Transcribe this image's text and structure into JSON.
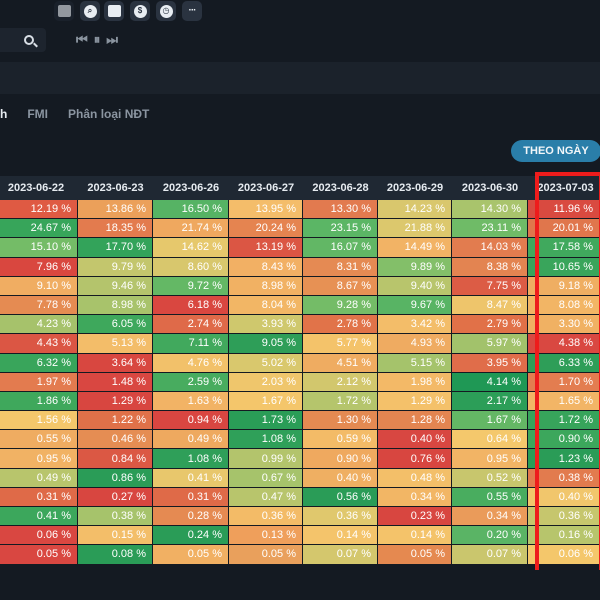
{
  "toolbar": {
    "icons": [
      {
        "name": "layout-icon"
      },
      {
        "name": "zoom-icon"
      },
      {
        "name": "gift-icon"
      },
      {
        "name": "dollar-icon",
        "glyph": "$"
      },
      {
        "name": "clock-icon"
      },
      {
        "name": "more-icon",
        "glyph": "···"
      }
    ],
    "playback": {
      "first": "⏮",
      "pause": "⏸",
      "next": "⏭"
    }
  },
  "tabs": [
    {
      "label": "h",
      "active": true
    },
    {
      "label": "FMI",
      "active": false
    },
    {
      "label": "Phân loại NĐT",
      "active": false
    }
  ],
  "view_button": {
    "label": "THEO NGÀY"
  },
  "table": {
    "columns": [
      "2023-06-22",
      "2023-06-23",
      "2023-06-26",
      "2023-06-27",
      "2023-06-28",
      "2023-06-29",
      "2023-06-30",
      "2023-07-03"
    ],
    "rows": [
      [
        {
          "v": "12.19 %",
          "c": "#df5a43"
        },
        {
          "v": "13.86 %",
          "c": "#eba05a"
        },
        {
          "v": "16.50 %",
          "c": "#56b364"
        },
        {
          "v": "13.95 %",
          "c": "#f4bd6a"
        },
        {
          "v": "13.30 %",
          "c": "#e27a4f"
        },
        {
          "v": "14.23 %",
          "c": "#d9c76d"
        },
        {
          "v": "14.30 %",
          "c": "#a9c46c"
        },
        {
          "v": "11.96 %",
          "c": "#d94a40"
        }
      ],
      [
        {
          "v": "24.67 %",
          "c": "#37a55a"
        },
        {
          "v": "18.35 %",
          "c": "#e37b4e"
        },
        {
          "v": "21.74 %",
          "c": "#efa85f"
        },
        {
          "v": "20.24 %",
          "c": "#e58450"
        },
        {
          "v": "23.15 %",
          "c": "#5bb665"
        },
        {
          "v": "21.88 %",
          "c": "#dcc86d"
        },
        {
          "v": "23.11 %",
          "c": "#6fbb67"
        },
        {
          "v": "20.01 %",
          "c": "#e0764c"
        }
      ],
      [
        {
          "v": "15.10 %",
          "c": "#74bc67"
        },
        {
          "v": "17.70 %",
          "c": "#33a35a"
        },
        {
          "v": "14.62 %",
          "c": "#e6c86c"
        },
        {
          "v": "13.19 %",
          "c": "#db5644"
        },
        {
          "v": "16.07 %",
          "c": "#62b765"
        },
        {
          "v": "14.49 %",
          "c": "#f2b365"
        },
        {
          "v": "14.03 %",
          "c": "#e27c4f"
        },
        {
          "v": "17.58 %",
          "c": "#40a95d"
        }
      ],
      [
        {
          "v": "7.96 %",
          "c": "#d9473f"
        },
        {
          "v": "9.79 %",
          "c": "#c3c66d"
        },
        {
          "v": "8.60 %",
          "c": "#d8c76d"
        },
        {
          "v": "8.43 %",
          "c": "#f2b064"
        },
        {
          "v": "8.31 %",
          "c": "#e58a53"
        },
        {
          "v": "9.89 %",
          "c": "#83bf69"
        },
        {
          "v": "8.38 %",
          "c": "#e38451"
        },
        {
          "v": "10.65 %",
          "c": "#39a55b"
        }
      ],
      [
        {
          "v": "9.10 %",
          "c": "#f0ad62"
        },
        {
          "v": "9.46 %",
          "c": "#b4c46c"
        },
        {
          "v": "9.72 %",
          "c": "#64b865"
        },
        {
          "v": "8.98 %",
          "c": "#f1b163"
        },
        {
          "v": "8.67 %",
          "c": "#e79154"
        },
        {
          "v": "9.40 %",
          "c": "#b8c56c"
        },
        {
          "v": "7.75 %",
          "c": "#dc5c45"
        },
        {
          "v": "9.18 %",
          "c": "#efae62"
        }
      ],
      [
        {
          "v": "7.78 %",
          "c": "#e58b52"
        },
        {
          "v": "8.98 %",
          "c": "#a8c36b"
        },
        {
          "v": "6.18 %",
          "c": "#d94740"
        },
        {
          "v": "8.04 %",
          "c": "#f2b665"
        },
        {
          "v": "9.28 %",
          "c": "#74bc67"
        },
        {
          "v": "9.67 %",
          "c": "#58b464"
        },
        {
          "v": "8.47 %",
          "c": "#eec56b"
        },
        {
          "v": "8.08 %",
          "c": "#f2b565"
        }
      ],
      [
        {
          "v": "4.23 %",
          "c": "#a6c26b"
        },
        {
          "v": "6.05 %",
          "c": "#3ea85c"
        },
        {
          "v": "2.74 %",
          "c": "#df6a49"
        },
        {
          "v": "3.93 %",
          "c": "#cfc86d"
        },
        {
          "v": "2.78 %",
          "c": "#e17349"
        },
        {
          "v": "3.42 %",
          "c": "#f3bd69"
        },
        {
          "v": "2.79 %",
          "c": "#e17148"
        },
        {
          "v": "3.30 %",
          "c": "#f0b163"
        }
      ],
      [
        {
          "v": "4.43 %",
          "c": "#db5644"
        },
        {
          "v": "5.13 %",
          "c": "#f3bd69"
        },
        {
          "v": "7.11 %",
          "c": "#41a95d"
        },
        {
          "v": "9.05 %",
          "c": "#2e9e58"
        },
        {
          "v": "5.77 %",
          "c": "#f4c36a"
        },
        {
          "v": "4.93 %",
          "c": "#efab61"
        },
        {
          "v": "5.97 %",
          "c": "#a2c26b"
        },
        {
          "v": "4.38 %",
          "c": "#d94841"
        }
      ],
      [
        {
          "v": "6.32 %",
          "c": "#39a55b"
        },
        {
          "v": "3.64 %",
          "c": "#d84740"
        },
        {
          "v": "4.76 %",
          "c": "#f2c16a"
        },
        {
          "v": "5.02 %",
          "c": "#d9c86d"
        },
        {
          "v": "4.51 %",
          "c": "#efac61"
        },
        {
          "v": "5.15 %",
          "c": "#a5c36b"
        },
        {
          "v": "3.95 %",
          "c": "#e06d4a"
        },
        {
          "v": "6.33 %",
          "c": "#2e9e58"
        }
      ],
      [
        {
          "v": "1.97 %",
          "c": "#e37b4f"
        },
        {
          "v": "1.48 %",
          "c": "#d94741"
        },
        {
          "v": "2.59 %",
          "c": "#48ac5f"
        },
        {
          "v": "2.03 %",
          "c": "#efc66c"
        },
        {
          "v": "2.12 %",
          "c": "#d2c76d"
        },
        {
          "v": "1.98 %",
          "c": "#f3b967"
        },
        {
          "v": "4.14 %",
          "c": "#1f9855"
        },
        {
          "v": "1.70 %",
          "c": "#e37d50"
        }
      ],
      [
        {
          "v": "1.86 %",
          "c": "#3fa85c"
        },
        {
          "v": "1.29 %",
          "c": "#d84640"
        },
        {
          "v": "1.63 %",
          "c": "#f2b365"
        },
        {
          "v": "1.67 %",
          "c": "#f4c66b"
        },
        {
          "v": "1.72 %",
          "c": "#b5c56c"
        },
        {
          "v": "1.29 %",
          "c": "#f4c16a"
        },
        {
          "v": "2.17 %",
          "c": "#2c9e58"
        },
        {
          "v": "1.65 %",
          "c": "#f2b566"
        }
      ],
      [
        {
          "v": "1.56 %",
          "c": "#f4c76b"
        },
        {
          "v": "1.22 %",
          "c": "#e07149"
        },
        {
          "v": "0.94 %",
          "c": "#d94641"
        },
        {
          "v": "1.73 %",
          "c": "#2a9d57"
        },
        {
          "v": "1.30 %",
          "c": "#e48a52"
        },
        {
          "v": "1.28 %",
          "c": "#e38551"
        },
        {
          "v": "1.67 %",
          "c": "#64b765"
        },
        {
          "v": "1.72 %",
          "c": "#37a45b"
        }
      ],
      [
        {
          "v": "0.55 %",
          "c": "#efac61"
        },
        {
          "v": "0.46 %",
          "c": "#e58d53"
        },
        {
          "v": "0.49 %",
          "c": "#eea95f"
        },
        {
          "v": "1.08 %",
          "c": "#2fa059"
        },
        {
          "v": "0.59 %",
          "c": "#f3bb67"
        },
        {
          "v": "0.40 %",
          "c": "#d84741"
        },
        {
          "v": "0.64 %",
          "c": "#f4c86c"
        },
        {
          "v": "0.90 %",
          "c": "#3ca75c"
        }
      ],
      [
        {
          "v": "0.95 %",
          "c": "#f1b264"
        },
        {
          "v": "0.84 %",
          "c": "#db5844"
        },
        {
          "v": "1.08 %",
          "c": "#2f9f59"
        },
        {
          "v": "0.99 %",
          "c": "#b3c46c"
        },
        {
          "v": "0.90 %",
          "c": "#efa95f"
        },
        {
          "v": "0.76 %",
          "c": "#d84640"
        },
        {
          "v": "0.95 %",
          "c": "#f2b465"
        },
        {
          "v": "1.23 %",
          "c": "#2a9c57"
        }
      ],
      [
        {
          "v": "0.49 %",
          "c": "#b8c56c"
        },
        {
          "v": "0.86 %",
          "c": "#2a9c57"
        },
        {
          "v": "0.41 %",
          "c": "#e8c76c"
        },
        {
          "v": "0.67 %",
          "c": "#a6c36b"
        },
        {
          "v": "0.40 %",
          "c": "#efaf62"
        },
        {
          "v": "0.48 %",
          "c": "#f3bf69"
        },
        {
          "v": "0.52 %",
          "c": "#c8c66d"
        },
        {
          "v": "0.38 %",
          "c": "#e27b4e"
        }
      ],
      [
        {
          "v": "0.31 %",
          "c": "#df6a48"
        },
        {
          "v": "0.27 %",
          "c": "#d84640"
        },
        {
          "v": "0.31 %",
          "c": "#df6a48"
        },
        {
          "v": "0.47 %",
          "c": "#b8c56c"
        },
        {
          "v": "0.56 %",
          "c": "#2a9c57"
        },
        {
          "v": "0.34 %",
          "c": "#f2b665"
        },
        {
          "v": "0.55 %",
          "c": "#49ad5f"
        },
        {
          "v": "0.40 %",
          "c": "#f1c66c"
        }
      ],
      [
        {
          "v": "0.41 %",
          "c": "#3ca75c"
        },
        {
          "v": "0.38 %",
          "c": "#a6c36b"
        },
        {
          "v": "0.28 %",
          "c": "#e58a52"
        },
        {
          "v": "0.36 %",
          "c": "#f3bb67"
        },
        {
          "v": "0.36 %",
          "c": "#e0c86d"
        },
        {
          "v": "0.23 %",
          "c": "#d84640"
        },
        {
          "v": "0.34 %",
          "c": "#ea9b5a"
        },
        {
          "v": "0.36 %",
          "c": "#c6c66d"
        }
      ],
      [
        {
          "v": "0.06 %",
          "c": "#d94741"
        },
        {
          "v": "0.15 %",
          "c": "#f3be69"
        },
        {
          "v": "0.24 %",
          "c": "#2a9c57"
        },
        {
          "v": "0.13 %",
          "c": "#ef9f5b"
        },
        {
          "v": "0.14 %",
          "c": "#f4c46b"
        },
        {
          "v": "0.14 %",
          "c": "#f4c36a"
        },
        {
          "v": "0.20 %",
          "c": "#5ab465"
        },
        {
          "v": "0.16 %",
          "c": "#b7c56c"
        }
      ],
      [
        {
          "v": "0.05 %",
          "c": "#d94741"
        },
        {
          "v": "0.08 %",
          "c": "#2a9c57"
        },
        {
          "v": "0.05 %",
          "c": "#f1b063"
        },
        {
          "v": "0.05 %",
          "c": "#e9a05c"
        },
        {
          "v": "0.07 %",
          "c": "#d4c76d"
        },
        {
          "v": "0.05 %",
          "c": "#e58950"
        },
        {
          "v": "0.07 %",
          "c": "#cac66d"
        },
        {
          "v": "0.06 %",
          "c": "#f4c76b"
        }
      ]
    ]
  },
  "highlight_color": "#ee1c1c"
}
